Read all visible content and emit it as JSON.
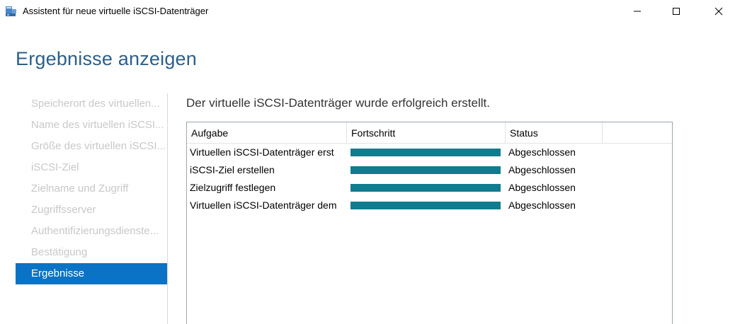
{
  "window": {
    "title": "Assistent für neue virtuelle iSCSI-Datenträger",
    "icon": "iscsi-wizard-icon",
    "controls": [
      "minimize-icon",
      "maximize-icon",
      "close-icon"
    ]
  },
  "page": {
    "title": "Ergebnisse anzeigen"
  },
  "nav": {
    "items": [
      {
        "label": "Speicherort des virtuellen...",
        "active": false
      },
      {
        "label": "Name des virtuellen iSCSI...",
        "active": false
      },
      {
        "label": "Größe des virtuellen iSCSI...",
        "active": false
      },
      {
        "label": "iSCSI-Ziel",
        "active": false
      },
      {
        "label": "Zielname und Zugriff",
        "active": false
      },
      {
        "label": "Zugriffsserver",
        "active": false
      },
      {
        "label": "Authentifizierungsdienste...",
        "active": false
      },
      {
        "label": "Bestätigung",
        "active": false
      },
      {
        "label": "Ergebnisse",
        "active": true
      }
    ]
  },
  "main": {
    "status_message": "Der virtuelle iSCSI-Datenträger wurde erfolgreich erstellt.",
    "table": {
      "headers": {
        "task": "Aufgabe",
        "progress": "Fortschritt",
        "status": "Status",
        "extra": ""
      },
      "rows": [
        {
          "task": "Virtuellen iSCSI-Datenträger erst",
          "progress": 1.0,
          "status": "Abgeschlossen"
        },
        {
          "task": "iSCSI-Ziel erstellen",
          "progress": 1.0,
          "status": "Abgeschlossen"
        },
        {
          "task": "Zielzugriff festlegen",
          "progress": 1.0,
          "status": "Abgeschlossen"
        },
        {
          "task": "Virtuellen iSCSI-Datenträger dem",
          "progress": 1.0,
          "status": "Abgeschlossen"
        }
      ]
    }
  },
  "colors": {
    "accent": "#0a73c5",
    "progress": "#0f7c8f",
    "title": "#2b5f8a",
    "nav_inactive": "#c8c8c8"
  }
}
